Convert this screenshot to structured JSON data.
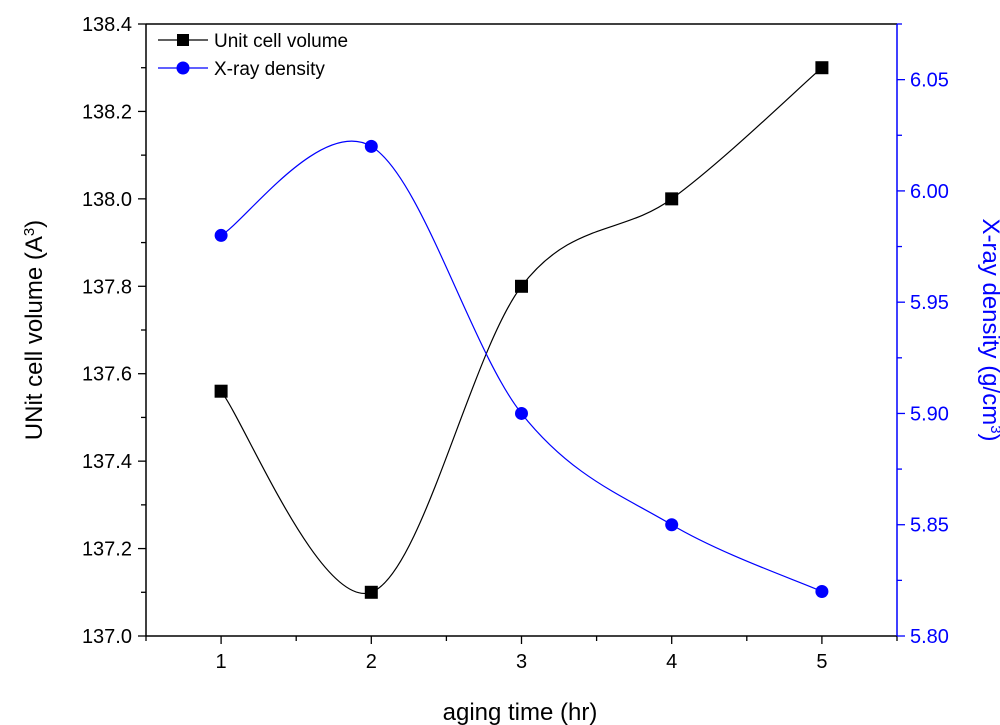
{
  "chart_data": {
    "type": "line",
    "title": "",
    "xlabel": "aging time (hr)",
    "ylabel_left_main": "UNit cell volume (A",
    "ylabel_left_sup": "3",
    "ylabel_left_end": ")",
    "ylabel_right_main": "X-ray density (g/cm",
    "ylabel_right_sup": "3",
    "ylabel_right_end": ")",
    "x": [
      1,
      2,
      3,
      4,
      5
    ],
    "xlim": [
      0.5,
      5.5
    ],
    "x_ticks": [
      "1",
      "2",
      "3",
      "4",
      "5"
    ],
    "ylim_left": [
      137.0,
      138.4
    ],
    "y_ticks_left": [
      "137.0",
      "137.2",
      "137.4",
      "137.6",
      "137.8",
      "138.0",
      "138.2",
      "138.4"
    ],
    "ylim_right": [
      5.8,
      6.075
    ],
    "y_ticks_right": [
      "5.80",
      "5.85",
      "5.90",
      "5.95",
      "6.00",
      "6.05"
    ],
    "grid": false,
    "legend_position": "top-left",
    "series": [
      {
        "name": "Unit cell volume",
        "axis": "left",
        "marker": "square",
        "color": "#000000",
        "values": [
          137.56,
          137.1,
          137.8,
          138.0,
          138.3
        ]
      },
      {
        "name": "X-ray density",
        "axis": "right",
        "marker": "circle",
        "color": "#0000ff",
        "values": [
          5.98,
          6.02,
          5.9,
          5.85,
          5.82
        ]
      }
    ]
  }
}
